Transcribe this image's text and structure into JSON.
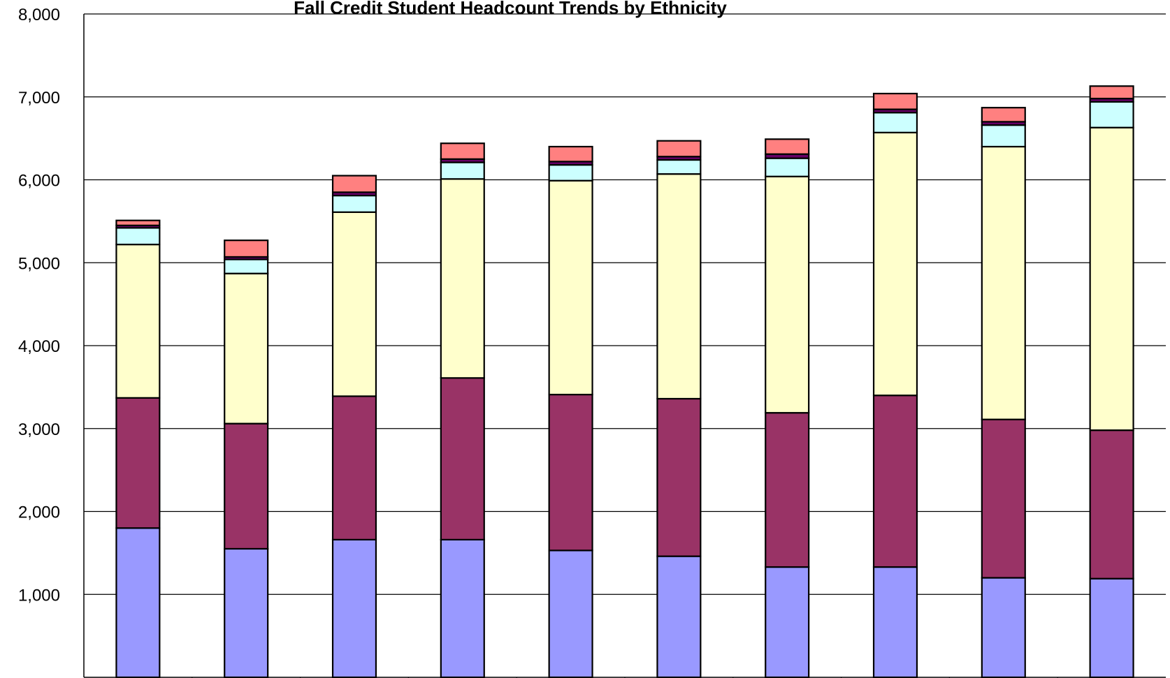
{
  "chart_data": {
    "type": "bar",
    "stacked": true,
    "title": "Fall Credit Student Headcount Trends by Ethnicity",
    "xlabel": "",
    "ylabel": "",
    "ylim": [
      0,
      8000
    ],
    "y_ticks": [
      "-",
      "1,000",
      "2,000",
      "3,000",
      "4,000",
      "5,000",
      "6,000",
      "7,000",
      "8,000"
    ],
    "y_tick_values": [
      0,
      1000,
      2000,
      3000,
      4000,
      5000,
      6000,
      7000,
      8000
    ],
    "grid": true,
    "legend": "none",
    "categories": [
      "",
      "",
      "",
      "",
      "",
      "",
      "",
      "",
      "",
      ""
    ],
    "series": [
      {
        "color": "#9999ff",
        "values": [
          1800,
          1550,
          1660,
          1660,
          1530,
          1460,
          1330,
          1330,
          1200,
          1190
        ]
      },
      {
        "color": "#993366",
        "values": [
          1570,
          1510,
          1730,
          1950,
          1880,
          1900,
          1860,
          2070,
          1910,
          1790
        ]
      },
      {
        "color": "#ffffcc",
        "values": [
          1850,
          1810,
          2220,
          2400,
          2580,
          2710,
          2850,
          3170,
          3290,
          3650
        ]
      },
      {
        "color": "#ccffff",
        "values": [
          200,
          170,
          200,
          200,
          190,
          170,
          220,
          240,
          260,
          310
        ]
      },
      {
        "color": "#660066",
        "values": [
          30,
          30,
          40,
          40,
          40,
          40,
          50,
          40,
          40,
          40
        ]
      },
      {
        "color": "#ff8080",
        "values": [
          60,
          200,
          200,
          190,
          180,
          190,
          180,
          190,
          170,
          150
        ]
      }
    ]
  }
}
